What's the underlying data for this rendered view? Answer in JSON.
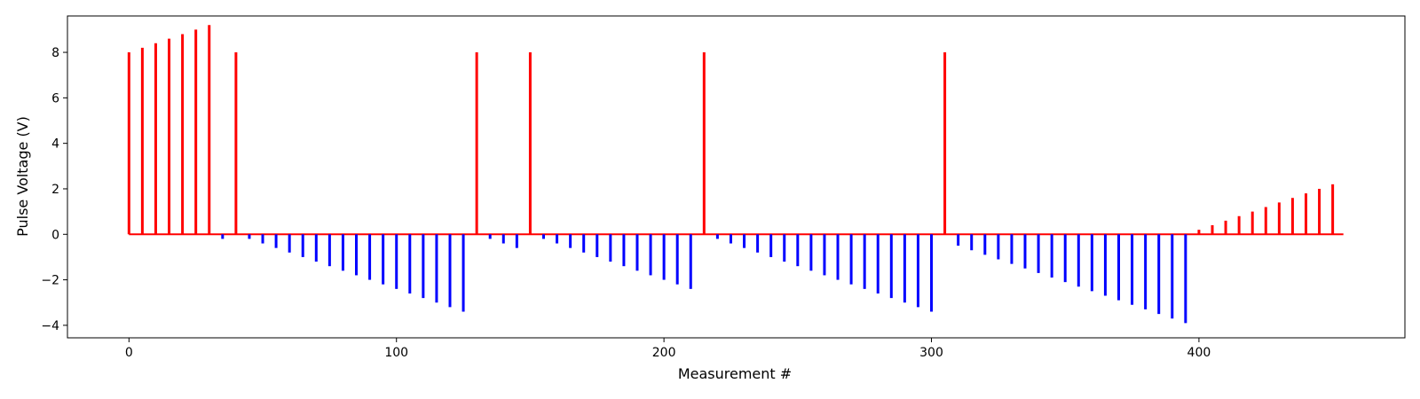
{
  "chart_data": {
    "type": "bar",
    "title": "",
    "xlabel": "Measurement #",
    "ylabel": "Pulse Voltage (V)",
    "xlim": [
      -23,
      477
    ],
    "ylim": [
      -4.55,
      9.6
    ],
    "xticks": [
      0,
      100,
      200,
      300,
      400
    ],
    "yticks": [
      -4,
      -2,
      0,
      2,
      4,
      6,
      8
    ],
    "grid": false,
    "legend": "none",
    "colors": {
      "set": "#ff0000",
      "reset": "#0000ff",
      "axis": "#000000"
    },
    "baseline": {
      "x_start": 0,
      "x_end": 454,
      "value": 0,
      "color": "#ff0000"
    },
    "series": [
      {
        "name": "",
        "color": "#ff0000",
        "x": [
          0,
          5,
          10,
          15,
          20,
          25,
          30,
          40,
          130,
          150,
          215,
          305,
          400,
          405,
          410,
          415,
          420,
          425,
          430,
          435,
          440,
          445,
          450
        ],
        "values": [
          8.0,
          8.2,
          8.4,
          8.6,
          8.8,
          9.0,
          9.2,
          8.0,
          8.0,
          8.0,
          8.0,
          8.0,
          0.2,
          0.4,
          0.6,
          0.8,
          1.0,
          1.2,
          1.4,
          1.6,
          1.8,
          2.0,
          2.2
        ]
      },
      {
        "name": "",
        "color": "#0000ff",
        "x": [
          35,
          45,
          50,
          55,
          60,
          65,
          70,
          75,
          80,
          85,
          90,
          95,
          100,
          105,
          110,
          115,
          120,
          125,
          135,
          140,
          145,
          155,
          160,
          165,
          170,
          175,
          180,
          185,
          190,
          195,
          200,
          205,
          210,
          220,
          225,
          230,
          235,
          240,
          245,
          250,
          255,
          260,
          265,
          270,
          275,
          280,
          285,
          290,
          295,
          300,
          310,
          315,
          320,
          325,
          330,
          335,
          340,
          345,
          350,
          355,
          360,
          365,
          370,
          375,
          380,
          385,
          390,
          395
        ],
        "values": [
          -0.2,
          -0.2,
          -0.4,
          -0.6,
          -0.8,
          -1.0,
          -1.2,
          -1.4,
          -1.6,
          -1.8,
          -2.0,
          -2.2,
          -2.4,
          -2.6,
          -2.8,
          -3.0,
          -3.2,
          -3.4,
          -0.2,
          -0.4,
          -0.6,
          -0.2,
          -0.4,
          -0.6,
          -0.8,
          -1.0,
          -1.2,
          -1.4,
          -1.6,
          -1.8,
          -2.0,
          -2.2,
          -2.4,
          -0.2,
          -0.4,
          -0.6,
          -0.8,
          -1.0,
          -1.2,
          -1.4,
          -1.6,
          -1.8,
          -2.0,
          -2.2,
          -2.4,
          -2.6,
          -2.8,
          -3.0,
          -3.2,
          -3.4,
          -0.5,
          -0.7,
          -0.9,
          -1.1,
          -1.3,
          -1.5,
          -1.7,
          -1.9,
          -2.1,
          -2.3,
          -2.5,
          -2.7,
          -2.9,
          -3.1,
          -3.3,
          -3.5,
          -3.7,
          -3.9
        ]
      }
    ]
  }
}
